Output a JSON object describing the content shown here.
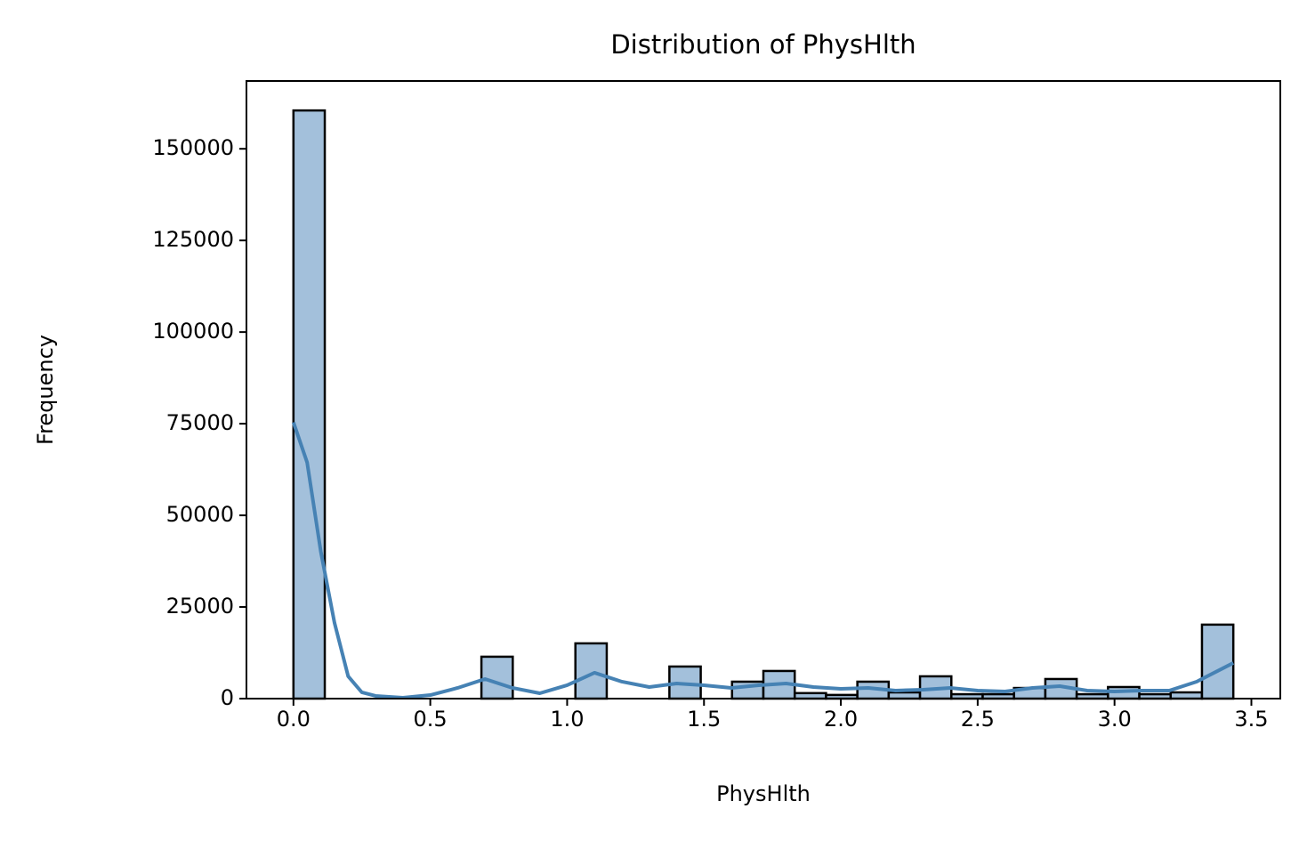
{
  "chart_data": {
    "type": "histogram",
    "title": "Distribution of PhysHlth",
    "x_label": "PhysHlth",
    "y_label": "Frequency",
    "bins": [
      0,
      0.1145,
      0.2289,
      0.3434,
      0.4579,
      0.5723,
      0.6868,
      0.8013,
      0.9157,
      1.0302,
      1.1447,
      1.2591,
      1.3736,
      1.4881,
      1.6025,
      1.717,
      1.8315,
      1.9459,
      2.0604,
      2.1749,
      2.2893,
      2.4038,
      2.5183,
      2.6327,
      2.7472,
      2.8617,
      2.9761,
      3.0906,
      3.2051,
      3.3195,
      3.434
    ],
    "values": [
      160460,
      0,
      0,
      0,
      0,
      0,
      11430,
      0,
      0,
      15070,
      0,
      0,
      8750,
      0,
      4620,
      7540,
      1500,
      1000,
      4620,
      1700,
      6080,
      1200,
      1200,
      2900,
      5350,
      1200,
      3160,
      1200,
      1700,
      20180
    ],
    "color": "#a3c0db",
    "edge_color": "#000000",
    "kde": {
      "color": "#4682b4",
      "x": [
        0,
        0.05,
        0.1,
        0.15,
        0.2,
        0.25,
        0.3,
        0.4,
        0.5,
        0.6,
        0.7,
        0.8,
        0.9,
        1.0,
        1.1,
        1.2,
        1.3,
        1.4,
        1.5,
        1.6,
        1.7,
        1.8,
        1.9,
        2.0,
        2.1,
        2.2,
        2.3,
        2.4,
        2.5,
        2.6,
        2.7,
        2.8,
        2.9,
        3.0,
        3.1,
        3.2,
        3.3,
        3.434
      ],
      "values": [
        75370,
        64430,
        40100,
        20660,
        6080,
        1700,
        730,
        240,
        970,
        2920,
        5350,
        2920,
        1460,
        3650,
        7050,
        4620,
        3160,
        4130,
        3650,
        2920,
        3650,
        4130,
        3160,
        2670,
        2920,
        2190,
        2430,
        2920,
        2190,
        1950,
        2920,
        3400,
        2190,
        1950,
        2190,
        2190,
        4620,
        9720
      ]
    },
    "xlim": [
      -0.1717,
      3.6057
    ],
    "ylim": [
      0,
      168500
    ],
    "xticks": [
      {
        "value": 0,
        "label": "0.0"
      },
      0.5,
      {
        "value": 1,
        "label": "1.0"
      },
      1.5,
      {
        "value": 2,
        "label": "2.0"
      },
      2.5,
      {
        "value": 3,
        "label": "3.0"
      },
      3.5
    ],
    "yticks": [
      0,
      25000,
      50000,
      75000,
      100000,
      125000,
      150000
    ]
  }
}
